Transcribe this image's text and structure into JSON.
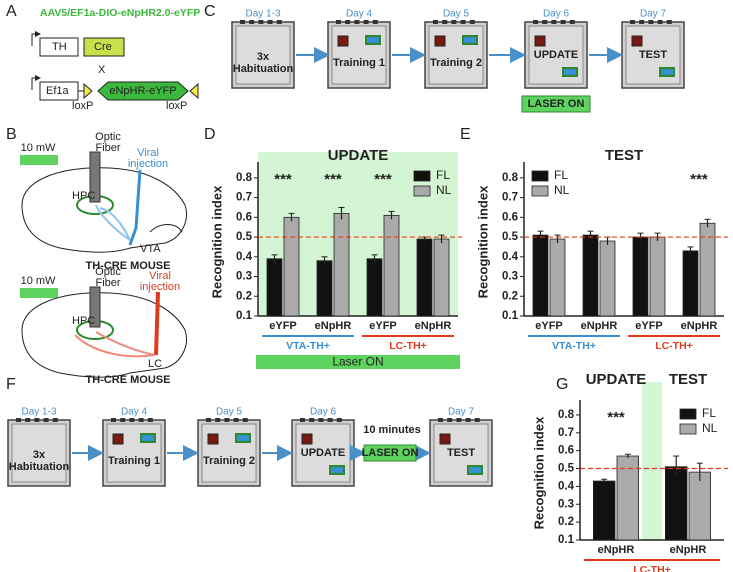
{
  "panel_labels": [
    "A",
    "B",
    "C",
    "D",
    "E",
    "F",
    "G"
  ],
  "construct": {
    "title": "AAV5/EF1a-DIO-eNpHR2.0-eYFP",
    "genes": [
      "TH",
      "Cre",
      "Ef1a",
      "eNpHR-eYFP"
    ],
    "cross": "X",
    "sites": [
      "loxP",
      "loxP"
    ]
  },
  "surgery": [
    {
      "power": "10 mW",
      "fiber": [
        "Optic",
        "Fiber"
      ],
      "injection": [
        "Viral",
        "injection"
      ],
      "regions": [
        "HPC",
        "VTA"
      ],
      "mouse": "TH-CRE MOUSE"
    },
    {
      "power": "10 mW",
      "fiber": [
        "Optic",
        "Fiber"
      ],
      "injection": [
        "Viral",
        "injection"
      ],
      "regions": [
        "HPC",
        "LC"
      ],
      "mouse": "TH-CRE MOUSE"
    }
  ],
  "timeline_c": {
    "days": [
      "Day 1-3",
      "Day 4",
      "Day 5",
      "Day 6",
      "Day 7"
    ],
    "stages": [
      [
        "3x",
        "Habituation"
      ],
      [
        "Training 1"
      ],
      [
        "Training 2"
      ],
      [
        "UPDATE"
      ],
      [
        "TEST"
      ]
    ],
    "laser": "LASER ON"
  },
  "timeline_f": {
    "days": [
      "Day 1-3",
      "Day 4",
      "Day 5",
      "Day 6",
      "Day 7"
    ],
    "stages": [
      [
        "3x",
        "Habituation"
      ],
      [
        "Training 1"
      ],
      [
        "Training 2"
      ],
      [
        "UPDATE"
      ],
      [
        "TEST"
      ]
    ],
    "delay": "10 minutes",
    "laser": "LASER ON"
  },
  "chart_data": [
    {
      "type": "bar",
      "title": "UPDATE",
      "y_label": "Recognition index",
      "groups": [
        {
          "name": "VTA-TH+",
          "color": "#3a8fd0",
          "categories": [
            "eYFP",
            "eNpHR"
          ]
        },
        {
          "name": "LC-TH+",
          "color": "#e03a1e",
          "categories": [
            "eYFP",
            "eNpHR"
          ]
        }
      ],
      "series": [
        {
          "name": "FL",
          "color": "#111111",
          "values": [
            0.39,
            0.38,
            0.39,
            0.49
          ],
          "errors": [
            0.02,
            0.02,
            0.02,
            0.01
          ]
        },
        {
          "name": "NL",
          "color": "#aaaaaa",
          "values": [
            0.6,
            0.62,
            0.61,
            0.49
          ],
          "errors": [
            0.02,
            0.03,
            0.02,
            0.02
          ],
          "significance": [
            "***",
            "***",
            "***",
            null
          ]
        }
      ],
      "ylim": [
        0.1,
        0.85
      ],
      "yticks": [
        0.1,
        0.2,
        0.3,
        0.4,
        0.5,
        0.6,
        0.7,
        0.8
      ],
      "reference_line": {
        "value": 0.5,
        "color": "#e03a1e"
      },
      "shading": {
        "color": "#d3f5d3",
        "region": "plot"
      },
      "banner": {
        "text": "Laser ON",
        "color": "#5fd35f"
      },
      "legend": "top-right"
    },
    {
      "type": "bar",
      "title": "TEST",
      "y_label": "Recognition index",
      "groups": [
        {
          "name": "VTA-TH+",
          "color": "#3a8fd0",
          "categories": [
            "eYFP",
            "eNpHR"
          ]
        },
        {
          "name": "LC-TH+",
          "color": "#e03a1e",
          "categories": [
            "eYFP",
            "eNpHR"
          ]
        }
      ],
      "series": [
        {
          "name": "FL",
          "color": "#111111",
          "values": [
            0.51,
            0.51,
            0.5,
            0.43
          ],
          "errors": [
            0.02,
            0.02,
            0.02,
            0.02
          ]
        },
        {
          "name": "NL",
          "color": "#aaaaaa",
          "values": [
            0.49,
            0.48,
            0.5,
            0.57
          ],
          "errors": [
            0.02,
            0.02,
            0.02,
            0.02
          ],
          "significance": [
            null,
            null,
            null,
            "***"
          ]
        }
      ],
      "ylim": [
        0.1,
        0.85
      ],
      "yticks": [
        0.1,
        0.2,
        0.3,
        0.4,
        0.5,
        0.6,
        0.7,
        0.8
      ],
      "reference_line": {
        "value": 0.5,
        "color": "#e03a1e"
      },
      "legend": "top-left"
    },
    {
      "type": "bar",
      "titles": [
        "UPDATE",
        "TEST"
      ],
      "y_label": "Recognition index",
      "groups": [
        {
          "name": "LC-TH+",
          "color": "#e03a1e",
          "categories": [
            "eNpHR",
            "eNpHR"
          ]
        }
      ],
      "series": [
        {
          "name": "FL",
          "color": "#111111",
          "values": [
            0.43,
            0.51
          ],
          "errors": [
            0.01,
            0.06
          ]
        },
        {
          "name": "NL",
          "color": "#aaaaaa",
          "values": [
            0.57,
            0.48
          ],
          "errors": [
            0.01,
            0.05
          ],
          "significance": [
            "***",
            null
          ]
        }
      ],
      "ylim": [
        0.1,
        0.85
      ],
      "yticks": [
        0.1,
        0.2,
        0.3,
        0.4,
        0.5,
        0.6,
        0.7,
        0.8
      ],
      "reference_line": {
        "value": 0.5,
        "color": "#e03a1e"
      },
      "shading": {
        "color": "#d3f5d3",
        "region": "gap"
      },
      "legend": "top-right"
    }
  ]
}
